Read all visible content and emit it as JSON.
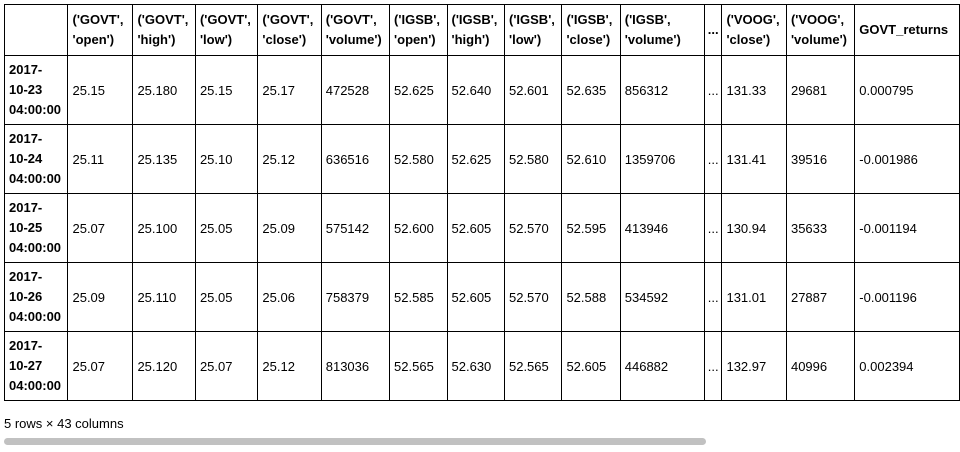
{
  "columns": [
    {
      "l1": "('GOVT',",
      "l2": "'open')"
    },
    {
      "l1": "('GOVT',",
      "l2": "'high')"
    },
    {
      "l1": "('GOVT',",
      "l2": "'low')"
    },
    {
      "l1": "('GOVT',",
      "l2": "'close')"
    },
    {
      "l1": "('GOVT',",
      "l2": "'volume')"
    },
    {
      "l1": "('IGSB',",
      "l2": "'open')"
    },
    {
      "l1": "('IGSB',",
      "l2": "'high')"
    },
    {
      "l1": "('IGSB',",
      "l2": "'low')"
    },
    {
      "l1": "('IGSB',",
      "l2": "'close')"
    },
    {
      "l1": "('IGSB',",
      "l2": "'volume')"
    },
    {
      "l1": "...",
      "l2": ""
    },
    {
      "l1": "('VOOG',",
      "l2": "'close')"
    },
    {
      "l1": "('VOOG',",
      "l2": "'volume')"
    },
    {
      "l1": "GOVT_returns",
      "l2": ""
    }
  ],
  "rows": [
    {
      "index": [
        "2017-",
        "10-23",
        "04:00:00"
      ],
      "cells": [
        "25.15",
        "25.180",
        "25.15",
        "25.17",
        "472528",
        "52.625",
        "52.640",
        "52.601",
        "52.635",
        "856312",
        "...",
        "131.33",
        "29681",
        "0.000795"
      ]
    },
    {
      "index": [
        "2017-",
        "10-24",
        "04:00:00"
      ],
      "cells": [
        "25.11",
        "25.135",
        "25.10",
        "25.12",
        "636516",
        "52.580",
        "52.625",
        "52.580",
        "52.610",
        "1359706",
        "...",
        "131.41",
        "39516",
        "-0.001986"
      ]
    },
    {
      "index": [
        "2017-",
        "10-25",
        "04:00:00"
      ],
      "cells": [
        "25.07",
        "25.100",
        "25.05",
        "25.09",
        "575142",
        "52.600",
        "52.605",
        "52.570",
        "52.595",
        "413946",
        "...",
        "130.94",
        "35633",
        "-0.001194"
      ]
    },
    {
      "index": [
        "2017-",
        "10-26",
        "04:00:00"
      ],
      "cells": [
        "25.09",
        "25.110",
        "25.05",
        "25.06",
        "758379",
        "52.585",
        "52.605",
        "52.570",
        "52.588",
        "534592",
        "...",
        "131.01",
        "27887",
        "-0.001196"
      ]
    },
    {
      "index": [
        "2017-",
        "10-27",
        "04:00:00"
      ],
      "cells": [
        "25.07",
        "25.120",
        "25.07",
        "25.12",
        "813036",
        "52.565",
        "52.630",
        "52.565",
        "52.605",
        "446882",
        "...",
        "132.97",
        "40996",
        "0.002394"
      ]
    }
  ],
  "footer": "5 rows × 43 columns"
}
